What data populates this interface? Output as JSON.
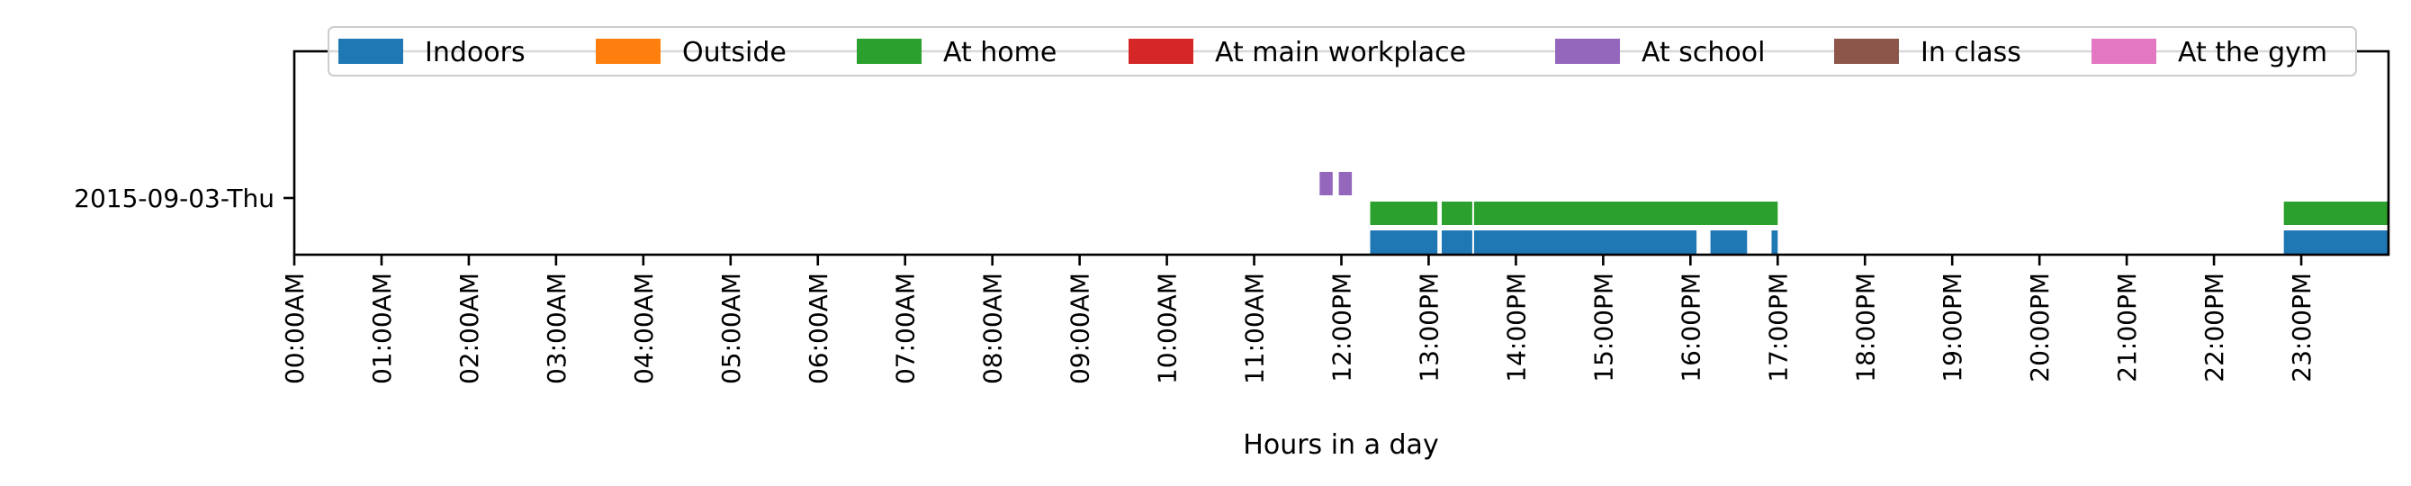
{
  "chart_data": {
    "type": "timeline",
    "xlabel": "Hours in a day",
    "xlim": [
      0,
      24
    ],
    "x_ticks": [
      {
        "h": 0,
        "label": "00:00AM"
      },
      {
        "h": 1,
        "label": "01:00AM"
      },
      {
        "h": 2,
        "label": "02:00AM"
      },
      {
        "h": 3,
        "label": "03:00AM"
      },
      {
        "h": 4,
        "label": "04:00AM"
      },
      {
        "h": 5,
        "label": "05:00AM"
      },
      {
        "h": 6,
        "label": "06:00AM"
      },
      {
        "h": 7,
        "label": "07:00AM"
      },
      {
        "h": 8,
        "label": "08:00AM"
      },
      {
        "h": 9,
        "label": "09:00AM"
      },
      {
        "h": 10,
        "label": "10:00AM"
      },
      {
        "h": 11,
        "label": "11:00AM"
      },
      {
        "h": 12,
        "label": "12:00PM"
      },
      {
        "h": 13,
        "label": "13:00PM"
      },
      {
        "h": 14,
        "label": "14:00PM"
      },
      {
        "h": 15,
        "label": "15:00PM"
      },
      {
        "h": 16,
        "label": "16:00PM"
      },
      {
        "h": 17,
        "label": "17:00PM"
      },
      {
        "h": 18,
        "label": "18:00PM"
      },
      {
        "h": 19,
        "label": "19:00PM"
      },
      {
        "h": 20,
        "label": "20:00PM"
      },
      {
        "h": 21,
        "label": "21:00PM"
      },
      {
        "h": 22,
        "label": "22:00PM"
      },
      {
        "h": 23,
        "label": "23:00PM"
      }
    ],
    "days": [
      "2015-09-03-Thu"
    ],
    "legend_position": "top",
    "series": [
      {
        "name": "Indoors",
        "color": "#1f77b4",
        "level": 0,
        "intervals": [
          [
            12.33,
            13.1
          ],
          [
            13.15,
            13.5
          ],
          [
            13.52,
            16.07
          ],
          [
            16.23,
            16.65
          ],
          [
            16.93,
            17.0
          ],
          [
            22.8,
            24.0
          ]
        ]
      },
      {
        "name": "Outside",
        "color": "#ff7f0e",
        "level": 0,
        "intervals": []
      },
      {
        "name": "At home",
        "color": "#2ca02c",
        "level": 1,
        "intervals": [
          [
            12.33,
            13.1
          ],
          [
            13.15,
            13.5
          ],
          [
            13.52,
            17.0
          ],
          [
            22.8,
            24.0
          ]
        ]
      },
      {
        "name": "At main workplace",
        "color": "#d62728",
        "level": 1,
        "intervals": []
      },
      {
        "name": "At school",
        "color": "#9467bd",
        "level": 2,
        "intervals": [
          [
            11.75,
            11.9
          ],
          [
            11.97,
            12.12
          ]
        ]
      },
      {
        "name": "In class",
        "color": "#8c564b",
        "level": 2,
        "intervals": []
      },
      {
        "name": "At the gym",
        "color": "#e377c2",
        "level": 3,
        "intervals": []
      }
    ]
  }
}
